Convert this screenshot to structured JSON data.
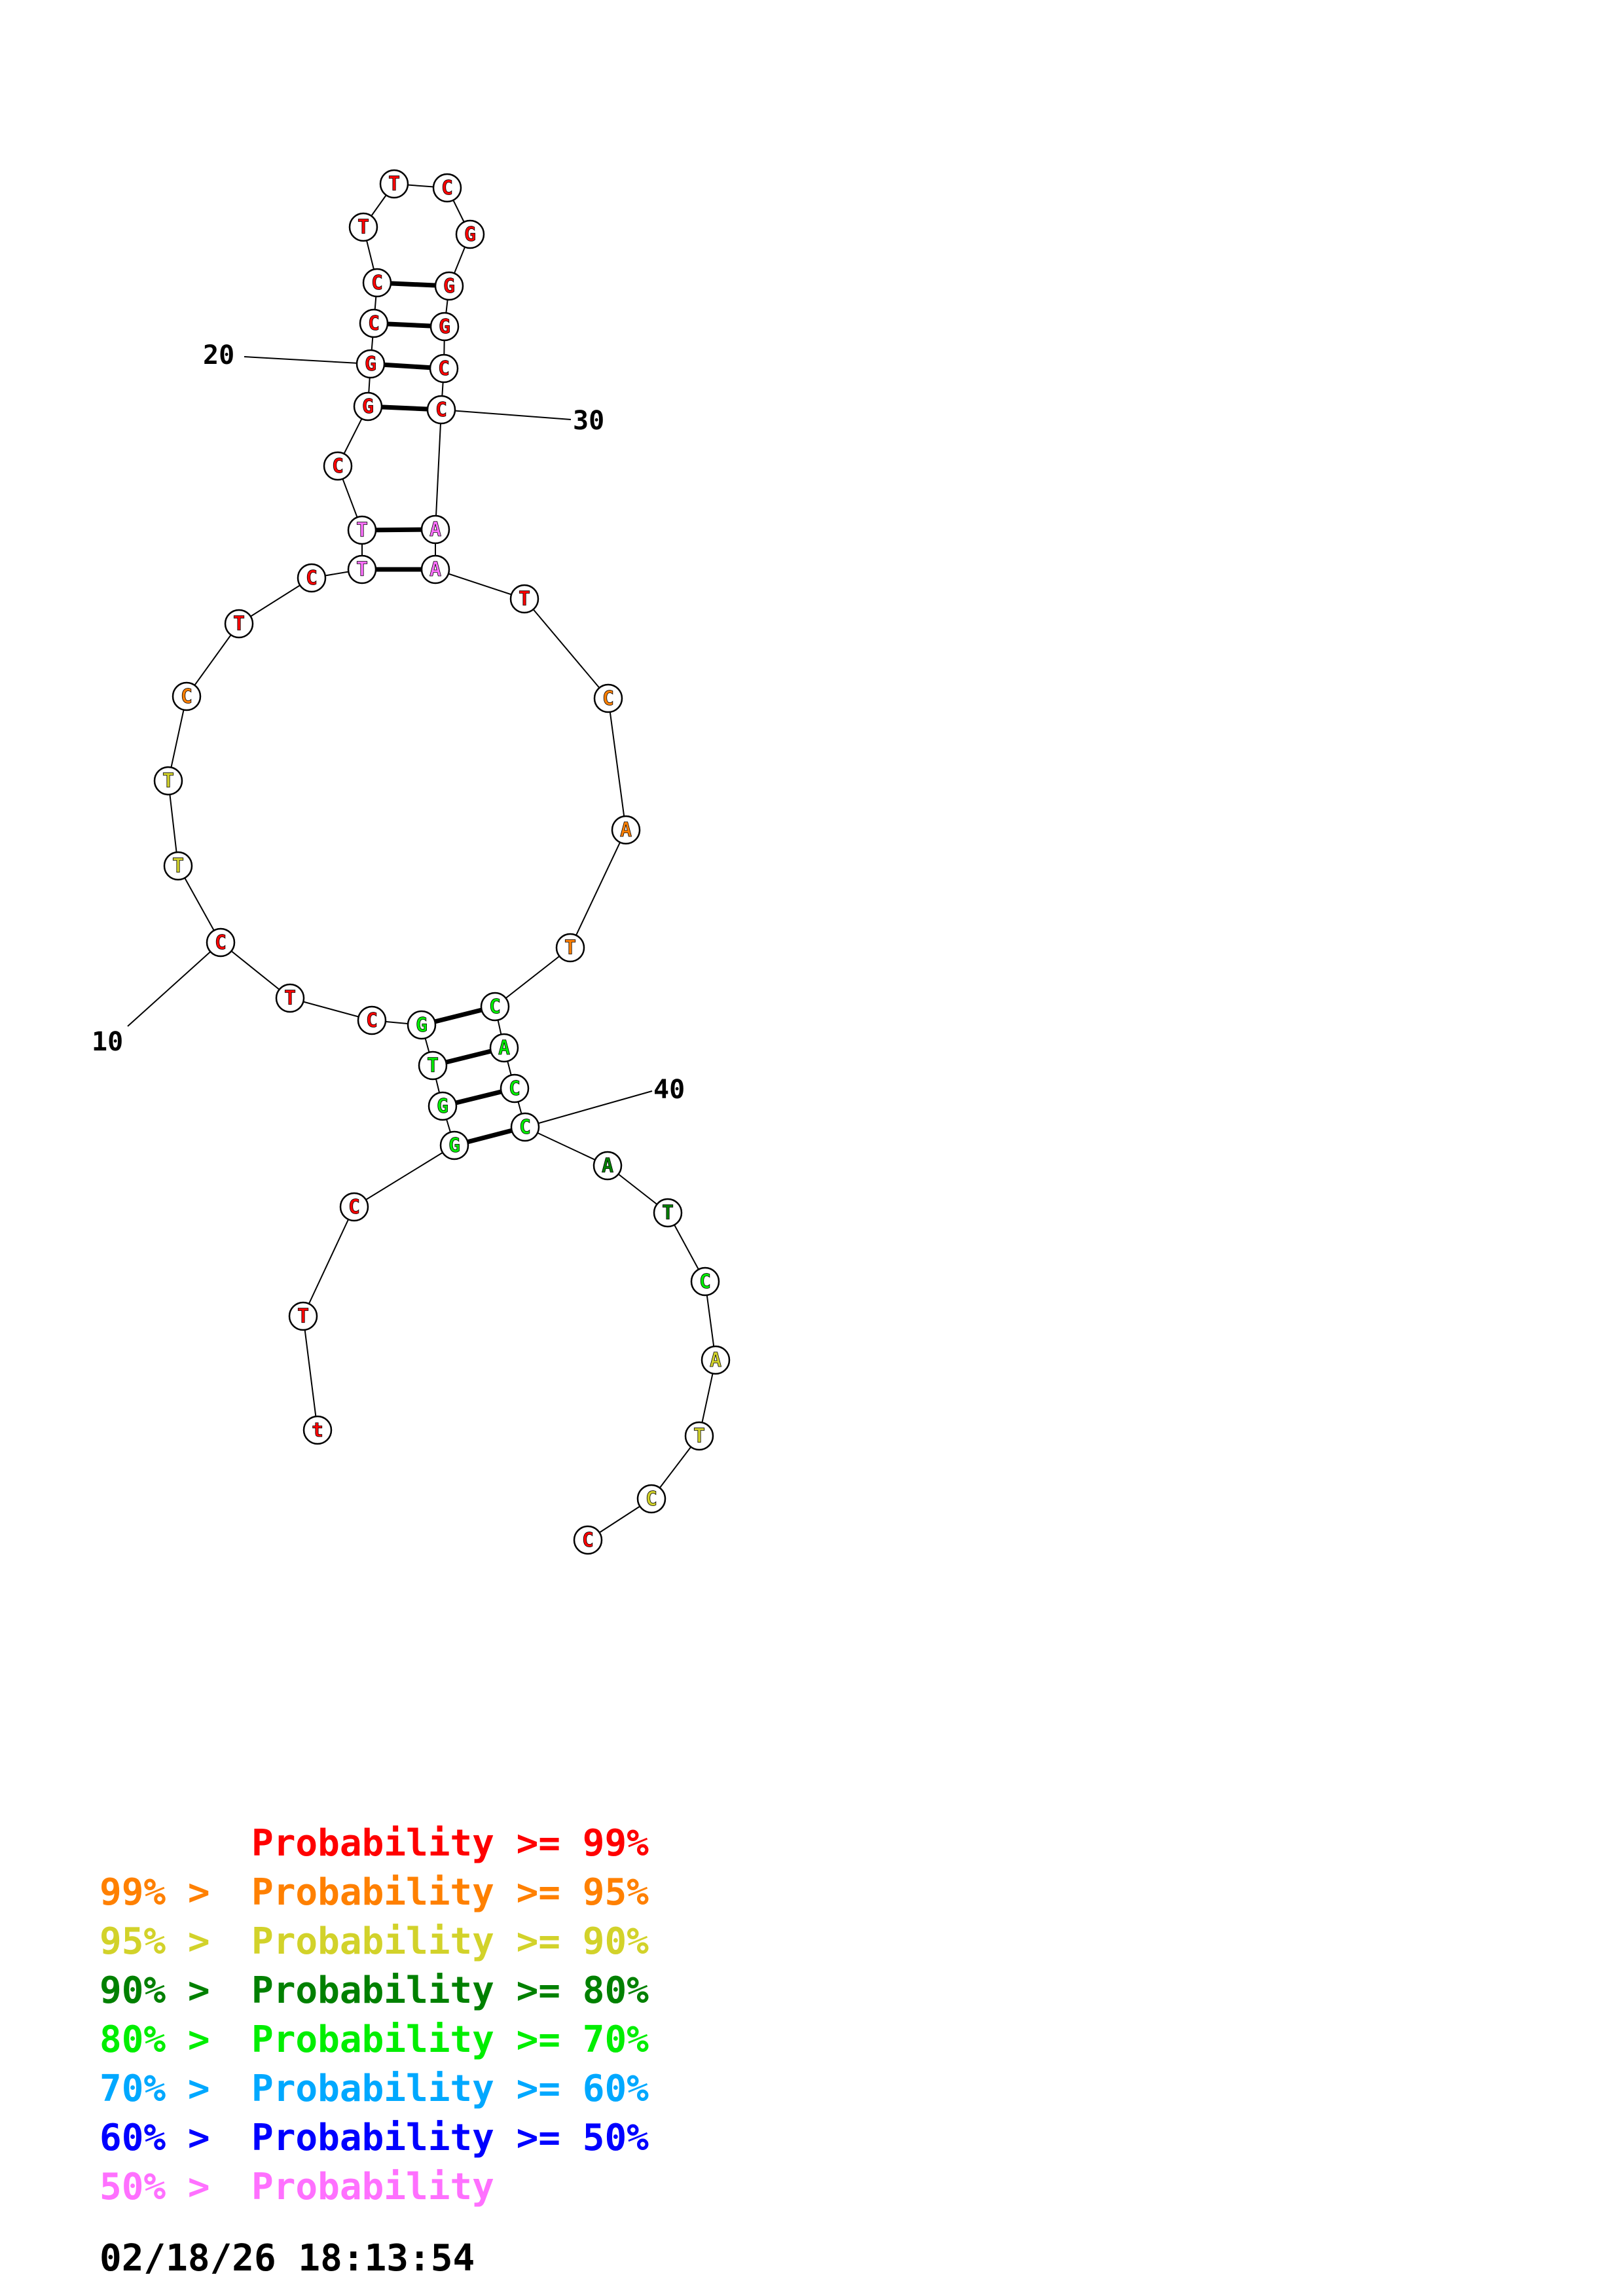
{
  "colors": {
    "p99": "#ff0000",
    "p95": "#ff8000",
    "p90": "#d2d22a",
    "p80": "#008000",
    "p70": "#00ee00",
    "p60": "#00a8ff",
    "p50": "#0000ff",
    "plow": "#ff70ff"
  },
  "nucleotides": [
    {
      "n": 1,
      "base": "t",
      "p": "p99"
    },
    {
      "n": 2,
      "base": "T",
      "p": "p99"
    },
    {
      "n": 3,
      "base": "C",
      "p": "p99"
    },
    {
      "n": 4,
      "base": "G",
      "p": "p70"
    },
    {
      "n": 5,
      "base": "G",
      "p": "p70"
    },
    {
      "n": 6,
      "base": "T",
      "p": "p70"
    },
    {
      "n": 7,
      "base": "G",
      "p": "p70"
    },
    {
      "n": 8,
      "base": "C",
      "p": "p99"
    },
    {
      "n": 9,
      "base": "T",
      "p": "p99"
    },
    {
      "n": 10,
      "base": "C",
      "p": "p99"
    },
    {
      "n": 11,
      "base": "T",
      "p": "p90"
    },
    {
      "n": 12,
      "base": "T",
      "p": "p90"
    },
    {
      "n": 13,
      "base": "C",
      "p": "p95"
    },
    {
      "n": 14,
      "base": "T",
      "p": "p99"
    },
    {
      "n": 15,
      "base": "C",
      "p": "p99"
    },
    {
      "n": 16,
      "base": "T",
      "p": "plow"
    },
    {
      "n": 17,
      "base": "T",
      "p": "plow"
    },
    {
      "n": 18,
      "base": "C",
      "p": "p99"
    },
    {
      "n": 19,
      "base": "G",
      "p": "p99"
    },
    {
      "n": 20,
      "base": "G",
      "p": "p99"
    },
    {
      "n": 21,
      "base": "C",
      "p": "p99"
    },
    {
      "n": 22,
      "base": "C",
      "p": "p99"
    },
    {
      "n": 23,
      "base": "T",
      "p": "p99"
    },
    {
      "n": 24,
      "base": "T",
      "p": "p99"
    },
    {
      "n": 25,
      "base": "C",
      "p": "p99"
    },
    {
      "n": 26,
      "base": "G",
      "p": "p99"
    },
    {
      "n": 27,
      "base": "G",
      "p": "p99"
    },
    {
      "n": 28,
      "base": "G",
      "p": "p99"
    },
    {
      "n": 29,
      "base": "C",
      "p": "p99"
    },
    {
      "n": 30,
      "base": "C",
      "p": "p99"
    },
    {
      "n": 31,
      "base": "A",
      "p": "plow"
    },
    {
      "n": 32,
      "base": "A",
      "p": "plow"
    },
    {
      "n": 33,
      "base": "T",
      "p": "p99"
    },
    {
      "n": 34,
      "base": "C",
      "p": "p95"
    },
    {
      "n": 35,
      "base": "A",
      "p": "p95"
    },
    {
      "n": 36,
      "base": "T",
      "p": "p95"
    },
    {
      "n": 37,
      "base": "C",
      "p": "p70"
    },
    {
      "n": 38,
      "base": "A",
      "p": "p70"
    },
    {
      "n": 39,
      "base": "C",
      "p": "p70"
    },
    {
      "n": 40,
      "base": "C",
      "p": "p70"
    },
    {
      "n": 41,
      "base": "A",
      "p": "p80"
    },
    {
      "n": 42,
      "base": "T",
      "p": "p80"
    },
    {
      "n": 43,
      "base": "C",
      "p": "p70"
    },
    {
      "n": 44,
      "base": "A",
      "p": "p90"
    },
    {
      "n": 45,
      "base": "T",
      "p": "p90"
    },
    {
      "n": 46,
      "base": "C",
      "p": "p90"
    },
    {
      "n": 47,
      "base": "C",
      "p": "p99"
    }
  ],
  "pairs": [
    [
      4,
      40
    ],
    [
      5,
      39
    ],
    [
      6,
      38
    ],
    [
      7,
      37
    ],
    [
      16,
      32
    ],
    [
      17,
      31
    ],
    [
      19,
      30
    ],
    [
      20,
      29
    ],
    [
      21,
      28
    ],
    [
      22,
      27
    ]
  ],
  "position_labels": [
    {
      "n": 10,
      "text": "10"
    },
    {
      "n": 20,
      "text": "20"
    },
    {
      "n": 30,
      "text": "30"
    },
    {
      "n": 40,
      "text": "40"
    }
  ],
  "legend": [
    {
      "left": "",
      "right": "Probability >= 99%",
      "color": "p99"
    },
    {
      "left": "99% > ",
      "right": "Probability >= 95%",
      "color": "p95"
    },
    {
      "left": "95% > ",
      "right": "Probability >= 90%",
      "color": "p90"
    },
    {
      "left": "90% > ",
      "right": "Probability >= 80%",
      "color": "p80"
    },
    {
      "left": "80% > ",
      "right": "Probability >= 70%",
      "color": "p70"
    },
    {
      "left": "70% > ",
      "right": "Probability >= 60%",
      "color": "p60"
    },
    {
      "left": "60% > ",
      "right": "Probability >= 50%",
      "color": "p50"
    },
    {
      "left": "50% > ",
      "right": "Probability",
      "color": "plow"
    }
  ],
  "timestamp": "02/18/26 18:13:54"
}
